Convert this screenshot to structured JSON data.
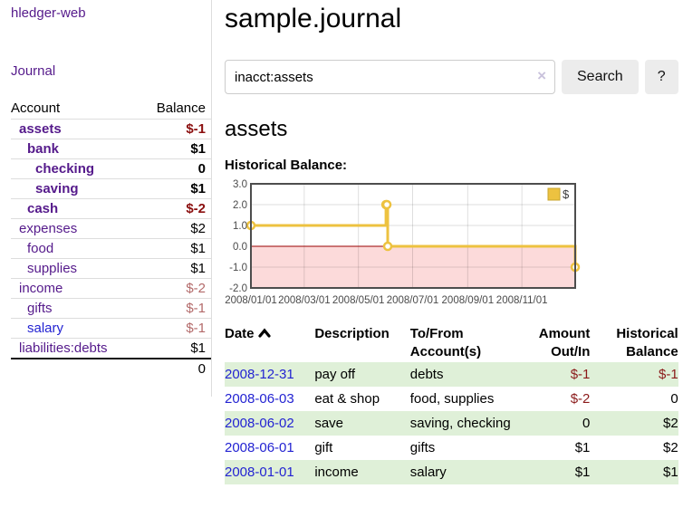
{
  "app": {
    "title": "hledger-web"
  },
  "colors": {
    "link_purple": "#551a8b",
    "link_blue": "#2323d2",
    "negative_dark": "#8b0f0f",
    "negative_soft": "#b36a6a",
    "row_stripe_green": "#dff0d8",
    "button_bg": "#ececec",
    "chart_line": "#edc240",
    "chart_negative_fill": "#fcdada",
    "chart_zero_line": "#990000"
  },
  "sidebar": {
    "journal_link": "Journal",
    "accounts_table": {
      "headers": {
        "account": "Account",
        "balance": "Balance"
      },
      "rows": [
        {
          "name": "assets",
          "balance": "$-1",
          "indent": 1,
          "bold": true,
          "neg": true,
          "blue": false
        },
        {
          "name": "bank",
          "balance": "$1",
          "indent": 2,
          "bold": true,
          "neg": false,
          "blue": false
        },
        {
          "name": "checking",
          "balance": "0",
          "indent": 3,
          "bold": true,
          "neg": false,
          "blue": false
        },
        {
          "name": "saving",
          "balance": "$1",
          "indent": 3,
          "bold": true,
          "neg": false,
          "blue": false
        },
        {
          "name": "cash",
          "balance": "$-2",
          "indent": 2,
          "bold": true,
          "neg": true,
          "blue": false
        },
        {
          "name": "expenses",
          "balance": "$2",
          "indent": 1,
          "bold": false,
          "neg": false,
          "blue": false
        },
        {
          "name": "food",
          "balance": "$1",
          "indent": 2,
          "bold": false,
          "neg": false,
          "blue": false
        },
        {
          "name": "supplies",
          "balance": "$1",
          "indent": 2,
          "bold": false,
          "neg": false,
          "blue": false
        },
        {
          "name": "income",
          "balance": "$-2",
          "indent": 1,
          "bold": false,
          "neg": true,
          "blue": false
        },
        {
          "name": "gifts",
          "balance": "$-1",
          "indent": 2,
          "bold": false,
          "neg": true,
          "blue": false
        },
        {
          "name": "salary",
          "balance": "$-1",
          "indent": 2,
          "bold": false,
          "neg": true,
          "blue": true
        },
        {
          "name": "liabilities:debts",
          "balance": "$1",
          "indent": 1,
          "bold": false,
          "neg": false,
          "blue": false
        }
      ],
      "total": "0"
    }
  },
  "header": {
    "title": "sample.journal"
  },
  "search": {
    "value": "inacct:assets",
    "clear_icon": "×",
    "search_label": "Search",
    "help_label": "?"
  },
  "account_page": {
    "title": "assets",
    "chart_label": "Historical Balance:"
  },
  "chart_data": {
    "type": "line",
    "title": "Historical Balance",
    "legend": {
      "position": "ne",
      "label": "$"
    },
    "x_start": "2008-01-01",
    "x_end": "2008-12-31",
    "ylim": [
      -2,
      3
    ],
    "y_ticks": [
      {
        "label": "3.0",
        "value": 3
      },
      {
        "label": "2.0",
        "value": 2
      },
      {
        "label": "1.0",
        "value": 1
      },
      {
        "label": "0.0",
        "value": 0
      },
      {
        "label": "-1.0",
        "value": -1
      },
      {
        "label": "-2.0",
        "value": -2
      }
    ],
    "x_ticks": [
      {
        "label": "2008/01/01",
        "date": "2008-01-01"
      },
      {
        "label": "2008/03/01",
        "date": "2008-03-01"
      },
      {
        "label": "2008/05/01",
        "date": "2008-05-01"
      },
      {
        "label": "2008/07/01",
        "date": "2008-07-01"
      },
      {
        "label": "2008/09/01",
        "date": "2008-09-01"
      },
      {
        "label": "2008/11/01",
        "date": "2008-11-01"
      }
    ],
    "series": [
      {
        "name": "$",
        "color": "#edc240",
        "step": true,
        "points": [
          {
            "date": "2008-01-01",
            "value": 1
          },
          {
            "date": "2008-06-01",
            "value": 2
          },
          {
            "date": "2008-06-02",
            "value": 2
          },
          {
            "date": "2008-06-03",
            "value": 0
          },
          {
            "date": "2008-12-31",
            "value": -1
          }
        ]
      }
    ]
  },
  "register_table": {
    "headers": {
      "date": "Date",
      "sort_icon": "chevron-up-icon",
      "description": "Description",
      "accounts": "To/From Account(s)",
      "amount": "Amount Out/In",
      "balance": "Historical Balance"
    },
    "rows": [
      {
        "date": "2008-12-31",
        "description": "pay off",
        "accounts": "debts",
        "amount": "$-1",
        "amount_neg": true,
        "balance": "$-1",
        "balance_neg": true
      },
      {
        "date": "2008-06-03",
        "description": "eat & shop",
        "accounts": "food, supplies",
        "amount": "$-2",
        "amount_neg": true,
        "balance": "0",
        "balance_neg": false
      },
      {
        "date": "2008-06-02",
        "description": "save",
        "accounts": "saving, checking",
        "amount": "0",
        "amount_neg": false,
        "balance": "$2",
        "balance_neg": false
      },
      {
        "date": "2008-06-01",
        "description": "gift",
        "accounts": "gifts",
        "amount": "$1",
        "amount_neg": false,
        "balance": "$2",
        "balance_neg": false
      },
      {
        "date": "2008-01-01",
        "description": "income",
        "accounts": "salary",
        "amount": "$1",
        "amount_neg": false,
        "balance": "$1",
        "balance_neg": false
      }
    ]
  }
}
